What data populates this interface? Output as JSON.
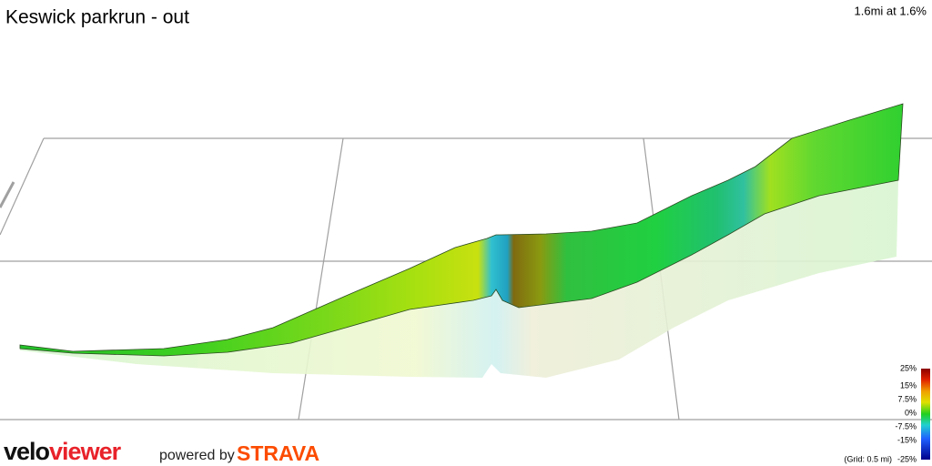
{
  "header": {
    "title": "Keswick parkrun - out",
    "summary": "1.6mi at 1.6%"
  },
  "legend": {
    "labels": [
      "25%",
      "15%",
      "7.5%",
      "0%",
      "-7.5%",
      "-15%",
      "-25%"
    ],
    "note": "(Grid: 0.5 mi)"
  },
  "footer": {
    "logo_part1": "velo",
    "logo_part2": "viewer",
    "powered_by": "powered by",
    "strava": "STRAVA"
  }
}
